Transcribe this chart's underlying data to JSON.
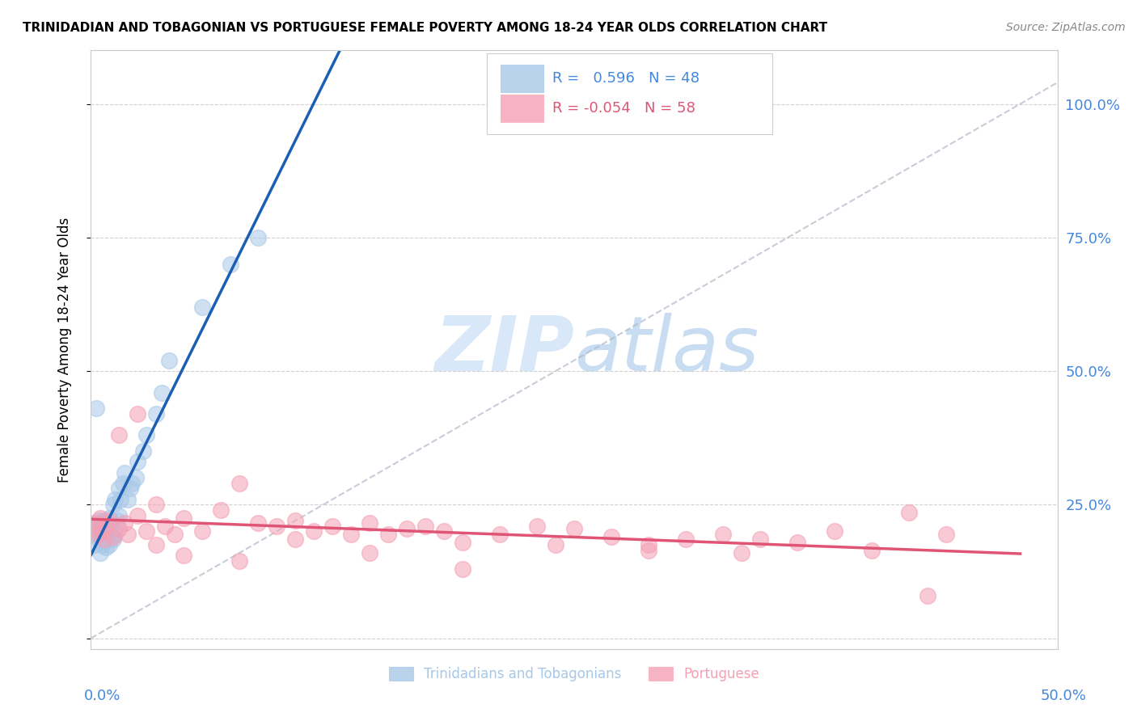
{
  "title": "TRINIDADIAN AND TOBAGONIAN VS PORTUGUESE FEMALE POVERTY AMONG 18-24 YEAR OLDS CORRELATION CHART",
  "source": "Source: ZipAtlas.com",
  "ylabel": "Female Poverty Among 18-24 Year Olds",
  "blue_color": "#a8c8e8",
  "blue_line_color": "#1a5fb4",
  "pink_color": "#f4a0b5",
  "pink_line_color": "#e05575",
  "diag_color": "#b0b8c8",
  "watermark_color": "#d8e8f8",
  "blue_label_R": "R =  0.596",
  "blue_label_N": "N = 48",
  "pink_label_R": "R = -0.054",
  "pink_label_N": "N = 58",
  "legend_label_color": "#4488dd",
  "ytick_color": "#4488dd",
  "xtick_color": "#4488dd",
  "blue_scatter_x": [
    0.002,
    0.003,
    0.003,
    0.004,
    0.004,
    0.005,
    0.005,
    0.005,
    0.006,
    0.006,
    0.006,
    0.007,
    0.007,
    0.007,
    0.008,
    0.008,
    0.008,
    0.009,
    0.009,
    0.01,
    0.01,
    0.01,
    0.011,
    0.011,
    0.012,
    0.012,
    0.013,
    0.013,
    0.014,
    0.015,
    0.015,
    0.016,
    0.017,
    0.018,
    0.02,
    0.021,
    0.022,
    0.024,
    0.025,
    0.028,
    0.03,
    0.035,
    0.038,
    0.042,
    0.06,
    0.075,
    0.003,
    0.09
  ],
  "blue_scatter_y": [
    0.175,
    0.195,
    0.21,
    0.185,
    0.22,
    0.16,
    0.2,
    0.215,
    0.175,
    0.19,
    0.205,
    0.18,
    0.2,
    0.22,
    0.17,
    0.195,
    0.21,
    0.185,
    0.215,
    0.175,
    0.2,
    0.225,
    0.19,
    0.215,
    0.185,
    0.25,
    0.195,
    0.26,
    0.22,
    0.23,
    0.28,
    0.26,
    0.29,
    0.31,
    0.26,
    0.28,
    0.29,
    0.3,
    0.33,
    0.35,
    0.38,
    0.42,
    0.46,
    0.52,
    0.62,
    0.7,
    0.43,
    0.75
  ],
  "pink_scatter_x": [
    0.002,
    0.003,
    0.004,
    0.005,
    0.006,
    0.007,
    0.008,
    0.01,
    0.012,
    0.015,
    0.018,
    0.02,
    0.025,
    0.03,
    0.035,
    0.04,
    0.045,
    0.05,
    0.06,
    0.07,
    0.08,
    0.09,
    0.1,
    0.11,
    0.12,
    0.13,
    0.14,
    0.15,
    0.16,
    0.17,
    0.18,
    0.19,
    0.2,
    0.22,
    0.24,
    0.26,
    0.28,
    0.3,
    0.32,
    0.34,
    0.36,
    0.38,
    0.4,
    0.42,
    0.44,
    0.46,
    0.015,
    0.025,
    0.035,
    0.05,
    0.08,
    0.11,
    0.15,
    0.2,
    0.25,
    0.3,
    0.35,
    0.45
  ],
  "pink_scatter_y": [
    0.215,
    0.205,
    0.195,
    0.225,
    0.2,
    0.185,
    0.21,
    0.22,
    0.19,
    0.205,
    0.215,
    0.195,
    0.23,
    0.2,
    0.25,
    0.21,
    0.195,
    0.225,
    0.2,
    0.24,
    0.29,
    0.215,
    0.21,
    0.22,
    0.2,
    0.21,
    0.195,
    0.215,
    0.195,
    0.205,
    0.21,
    0.2,
    0.18,
    0.195,
    0.21,
    0.205,
    0.19,
    0.175,
    0.185,
    0.195,
    0.185,
    0.18,
    0.2,
    0.165,
    0.235,
    0.195,
    0.38,
    0.42,
    0.175,
    0.155,
    0.145,
    0.185,
    0.16,
    0.13,
    0.175,
    0.165,
    0.16,
    0.08
  ],
  "xlim": [
    0.0,
    0.52
  ],
  "ylim": [
    -0.02,
    1.1
  ],
  "yticks": [
    0.0,
    0.25,
    0.5,
    0.75,
    1.0
  ],
  "ytick_labels": [
    "",
    "25.0%",
    "50.0%",
    "75.0%",
    "100.0%"
  ],
  "xtick_labels_show": [
    "0.0%",
    "50.0%"
  ],
  "xtick_show_vals": [
    0.0,
    0.5
  ]
}
